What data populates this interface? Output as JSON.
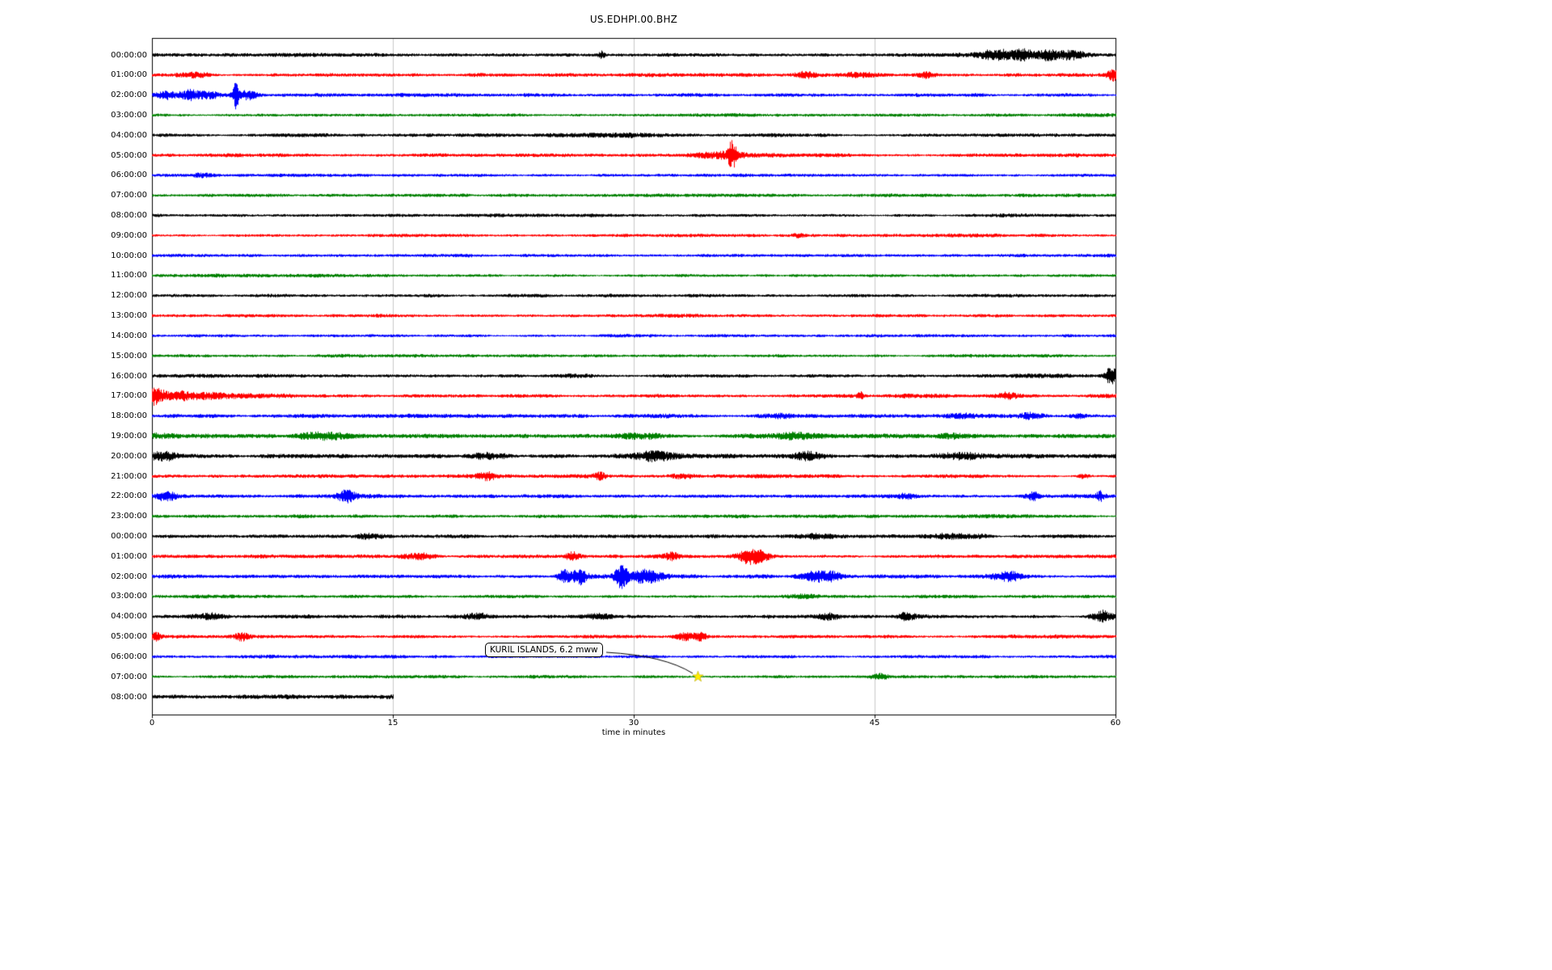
{
  "title": "US.EDHPI.00.BHZ",
  "x_axis": {
    "label": "time in minutes",
    "min": 0,
    "max": 60,
    "ticks": [
      0,
      15,
      30,
      45,
      60
    ]
  },
  "annotation": {
    "text": "KURIL ISLANDS, 6.2 mww",
    "marker": "star-icon",
    "marker_color": "#ffee00",
    "target_row": 31,
    "target_minute": 34
  },
  "palette": {
    "black": "#000000",
    "red": "#ff0000",
    "blue": "#0000ff",
    "green": "#008000"
  },
  "chart_data": {
    "type": "line",
    "subtype": "helicorder-dayplot",
    "title": "US.EDHPI.00.BHZ",
    "xlabel": "time in minutes",
    "x_unit": "minutes",
    "x_range": [
      0,
      60
    ],
    "row_duration_minutes": 60,
    "grid": "vertical-at-15-30-45",
    "rows": [
      {
        "label": "00:00:00",
        "color": "black",
        "amp": 1.0,
        "extent": 60,
        "events": [
          {
            "t": 28.0,
            "a": 2.0,
            "w": 0.15
          },
          {
            "t": 52.6,
            "a": 2.2,
            "w": 0.9
          },
          {
            "t": 54.2,
            "a": 2.6,
            "w": 0.5
          },
          {
            "t": 55.8,
            "a": 2.0,
            "w": 0.6
          },
          {
            "t": 57.3,
            "a": 1.6,
            "w": 0.5
          }
        ]
      },
      {
        "label": "01:00:00",
        "color": "red",
        "amp": 1.0,
        "extent": 60,
        "events": [
          {
            "t": 2.1,
            "a": 1.8,
            "w": 0.7
          },
          {
            "t": 3.2,
            "a": 1.5,
            "w": 0.4
          },
          {
            "t": 40.8,
            "a": 1.5,
            "w": 0.6
          },
          {
            "t": 44.0,
            "a": 1.2,
            "w": 0.8
          },
          {
            "t": 48.2,
            "a": 1.4,
            "w": 0.4
          },
          {
            "t": 59.8,
            "a": 3.5,
            "w": 0.25
          }
        ]
      },
      {
        "label": "02:00:00",
        "color": "blue",
        "amp": 1.0,
        "extent": 60,
        "events": [
          {
            "t": 0.9,
            "a": 2.2,
            "w": 0.4
          },
          {
            "t": 2.3,
            "a": 2.4,
            "w": 0.5
          },
          {
            "t": 3.6,
            "a": 1.8,
            "w": 0.4
          },
          {
            "t": 5.2,
            "a": 7.0,
            "w": 0.12
          },
          {
            "t": 5.9,
            "a": 2.0,
            "w": 0.5
          }
        ]
      },
      {
        "label": "03:00:00",
        "color": "green",
        "amp": 0.9,
        "extent": 60,
        "events": []
      },
      {
        "label": "04:00:00",
        "color": "black",
        "amp": 1.0,
        "extent": 60,
        "events": [
          {
            "t": 29.5,
            "a": 0.8,
            "w": 2.0
          }
        ]
      },
      {
        "label": "05:00:00",
        "color": "red",
        "amp": 1.0,
        "extent": 60,
        "events": [
          {
            "t": 35.3,
            "a": 2.2,
            "w": 1.0
          },
          {
            "t": 36.1,
            "a": 8.0,
            "w": 0.18
          }
        ]
      },
      {
        "label": "06:00:00",
        "color": "blue",
        "amp": 0.9,
        "extent": 60,
        "events": [
          {
            "t": 3.0,
            "a": 1.0,
            "w": 0.5
          }
        ]
      },
      {
        "label": "07:00:00",
        "color": "green",
        "amp": 0.9,
        "extent": 60,
        "events": []
      },
      {
        "label": "08:00:00",
        "color": "black",
        "amp": 0.95,
        "extent": 60,
        "events": []
      },
      {
        "label": "09:00:00",
        "color": "red",
        "amp": 0.9,
        "extent": 60,
        "events": [
          {
            "t": 40.2,
            "a": 1.2,
            "w": 0.3
          }
        ]
      },
      {
        "label": "10:00:00",
        "color": "blue",
        "amp": 0.85,
        "extent": 60,
        "events": []
      },
      {
        "label": "11:00:00",
        "color": "green",
        "amp": 0.85,
        "extent": 60,
        "events": []
      },
      {
        "label": "12:00:00",
        "color": "black",
        "amp": 0.9,
        "extent": 60,
        "events": []
      },
      {
        "label": "13:00:00",
        "color": "red",
        "amp": 0.85,
        "extent": 60,
        "events": []
      },
      {
        "label": "14:00:00",
        "color": "blue",
        "amp": 0.85,
        "extent": 60,
        "events": []
      },
      {
        "label": "15:00:00",
        "color": "green",
        "amp": 0.9,
        "extent": 60,
        "events": []
      },
      {
        "label": "16:00:00",
        "color": "black",
        "amp": 1.0,
        "extent": 60,
        "events": [
          {
            "t": 59.7,
            "a": 4.5,
            "w": 0.25
          }
        ]
      },
      {
        "label": "17:00:00",
        "color": "red",
        "amp": 1.0,
        "extent": 60,
        "events": [
          {
            "t": 0.3,
            "a": 5.0,
            "w": 0.35
          },
          {
            "t": 1.6,
            "a": 2.2,
            "w": 0.8
          },
          {
            "t": 3.5,
            "a": 1.4,
            "w": 1.2
          },
          {
            "t": 44.1,
            "a": 2.0,
            "w": 0.12
          },
          {
            "t": 53.2,
            "a": 1.4,
            "w": 0.4
          }
        ]
      },
      {
        "label": "18:00:00",
        "color": "blue",
        "amp": 1.1,
        "extent": 60,
        "events": [
          {
            "t": 39.5,
            "a": 1.4,
            "w": 1.2
          },
          {
            "t": 50.3,
            "a": 1.2,
            "w": 0.8
          },
          {
            "t": 54.6,
            "a": 1.6,
            "w": 0.5
          },
          {
            "t": 57.5,
            "a": 1.2,
            "w": 0.5
          }
        ]
      },
      {
        "label": "19:00:00",
        "color": "green",
        "amp": 1.15,
        "extent": 60,
        "events": [
          {
            "t": 0.8,
            "a": 1.2,
            "w": 0.8
          },
          {
            "t": 10.3,
            "a": 1.3,
            "w": 1.2
          },
          {
            "t": 30.5,
            "a": 1.2,
            "w": 0.9
          },
          {
            "t": 40.2,
            "a": 1.4,
            "w": 1.2
          },
          {
            "t": 50.0,
            "a": 1.0,
            "w": 0.8
          }
        ]
      },
      {
        "label": "20:00:00",
        "color": "black",
        "amp": 1.15,
        "extent": 60,
        "events": [
          {
            "t": 0.6,
            "a": 1.8,
            "w": 0.7
          },
          {
            "t": 21.0,
            "a": 1.2,
            "w": 0.8
          },
          {
            "t": 31.2,
            "a": 1.4,
            "w": 0.9
          },
          {
            "t": 41.0,
            "a": 1.5,
            "w": 0.7
          },
          {
            "t": 50.3,
            "a": 1.6,
            "w": 0.9
          }
        ]
      },
      {
        "label": "21:00:00",
        "color": "red",
        "amp": 1.0,
        "extent": 60,
        "events": [
          {
            "t": 20.8,
            "a": 1.5,
            "w": 0.4
          },
          {
            "t": 27.9,
            "a": 1.8,
            "w": 0.25
          },
          {
            "t": 33.0,
            "a": 1.2,
            "w": 0.5
          },
          {
            "t": 58.0,
            "a": 1.5,
            "w": 0.3
          }
        ]
      },
      {
        "label": "22:00:00",
        "color": "blue",
        "amp": 1.0,
        "extent": 60,
        "events": [
          {
            "t": 0.8,
            "a": 2.0,
            "w": 0.5
          },
          {
            "t": 12.1,
            "a": 3.0,
            "w": 0.35
          },
          {
            "t": 47.0,
            "a": 1.2,
            "w": 0.5
          },
          {
            "t": 54.8,
            "a": 1.8,
            "w": 0.3
          },
          {
            "t": 59.0,
            "a": 2.0,
            "w": 0.2
          }
        ]
      },
      {
        "label": "23:00:00",
        "color": "green",
        "amp": 0.95,
        "extent": 60,
        "events": []
      },
      {
        "label": "00:00:00",
        "color": "black",
        "amp": 1.0,
        "extent": 60,
        "events": [
          {
            "t": 13.5,
            "a": 0.9,
            "w": 0.8
          },
          {
            "t": 41.2,
            "a": 1.2,
            "w": 0.9
          },
          {
            "t": 50.0,
            "a": 1.4,
            "w": 1.1
          }
        ]
      },
      {
        "label": "01:00:00",
        "color": "red",
        "amp": 1.0,
        "extent": 60,
        "events": [
          {
            "t": 16.6,
            "a": 1.5,
            "w": 0.7
          },
          {
            "t": 26.2,
            "a": 2.6,
            "w": 0.3
          },
          {
            "t": 32.4,
            "a": 1.6,
            "w": 0.4
          },
          {
            "t": 37.2,
            "a": 3.0,
            "w": 0.5
          },
          {
            "t": 38.0,
            "a": 2.0,
            "w": 0.4
          }
        ]
      },
      {
        "label": "02:00:00",
        "color": "blue",
        "amp": 1.05,
        "extent": 60,
        "events": [
          {
            "t": 25.6,
            "a": 4.5,
            "w": 0.3
          },
          {
            "t": 26.6,
            "a": 3.5,
            "w": 0.35
          },
          {
            "t": 29.2,
            "a": 4.5,
            "w": 0.25
          },
          {
            "t": 30.8,
            "a": 2.6,
            "w": 0.8
          },
          {
            "t": 41.2,
            "a": 2.4,
            "w": 0.7
          },
          {
            "t": 42.3,
            "a": 2.0,
            "w": 0.4
          },
          {
            "t": 53.3,
            "a": 2.4,
            "w": 0.7
          }
        ]
      },
      {
        "label": "03:00:00",
        "color": "green",
        "amp": 0.95,
        "extent": 60,
        "events": [
          {
            "t": 40.2,
            "a": 1.1,
            "w": 0.7
          }
        ]
      },
      {
        "label": "04:00:00",
        "color": "black",
        "amp": 1.1,
        "extent": 60,
        "events": [
          {
            "t": 3.6,
            "a": 1.8,
            "w": 0.7
          },
          {
            "t": 20.2,
            "a": 1.5,
            "w": 0.5
          },
          {
            "t": 28.0,
            "a": 1.4,
            "w": 0.5
          },
          {
            "t": 42.1,
            "a": 1.7,
            "w": 0.4
          },
          {
            "t": 47.0,
            "a": 1.5,
            "w": 0.4
          },
          {
            "t": 59.2,
            "a": 4.0,
            "w": 0.45
          }
        ]
      },
      {
        "label": "05:00:00",
        "color": "red",
        "amp": 0.95,
        "extent": 60,
        "events": [
          {
            "t": 0.2,
            "a": 2.5,
            "w": 0.2
          },
          {
            "t": 5.6,
            "a": 2.0,
            "w": 0.3
          },
          {
            "t": 33.4,
            "a": 2.2,
            "w": 0.5
          },
          {
            "t": 34.1,
            "a": 1.6,
            "w": 0.3
          }
        ]
      },
      {
        "label": "06:00:00",
        "color": "blue",
        "amp": 0.9,
        "extent": 60,
        "events": []
      },
      {
        "label": "07:00:00",
        "color": "green",
        "amp": 0.9,
        "extent": 60,
        "events": [
          {
            "t": 45.2,
            "a": 1.6,
            "w": 0.35
          }
        ]
      },
      {
        "label": "08:00:00",
        "color": "black",
        "amp": 1.15,
        "extent": 15,
        "events": []
      }
    ]
  }
}
